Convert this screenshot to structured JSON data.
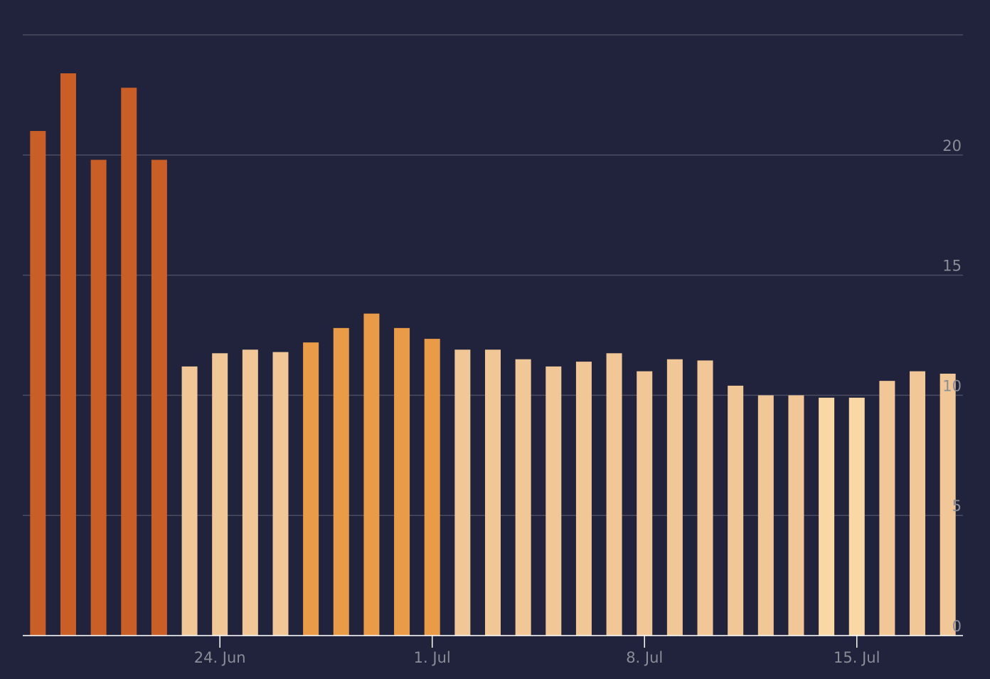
{
  "chart_data": {
    "type": "bar",
    "categories": [
      null,
      null,
      null,
      null,
      null,
      null,
      "24. Jun",
      null,
      null,
      null,
      null,
      null,
      null,
      "1. Jul",
      null,
      null,
      null,
      null,
      null,
      null,
      "8. Jul",
      null,
      null,
      null,
      null,
      null,
      null,
      "15. Jul",
      null,
      null,
      null
    ],
    "values": [
      21.0,
      23.4,
      19.8,
      22.8,
      19.8,
      11.2,
      11.75,
      11.9,
      11.8,
      12.2,
      12.8,
      13.4,
      12.8,
      12.35,
      11.9,
      11.9,
      11.5,
      11.2,
      11.4,
      11.75,
      11.0,
      11.5,
      11.45,
      10.4,
      10.0,
      10.0,
      9.9,
      9.9,
      10.6,
      11.0,
      10.9
    ],
    "colors": [
      "#c95e27",
      "#c95e27",
      "#c95e27",
      "#c95e27",
      "#c95e27",
      "#f2c797",
      "#f2c797",
      "#f2c797",
      "#f2c797",
      "#e99b48",
      "#e99b48",
      "#e99b48",
      "#e99b48",
      "#e99b48",
      "#f2c797",
      "#f2c797",
      "#f2c797",
      "#f2c797",
      "#f2c797",
      "#f2c797",
      "#f2c797",
      "#f2c797",
      "#f2c797",
      "#f2c797",
      "#f2c797",
      "#f2c797",
      "#f9d8a6",
      "#f9d8a6",
      "#f2c797",
      "#f2c797",
      "#f2c797"
    ],
    "ylim": [
      0,
      25
    ],
    "yticks": [
      0,
      5,
      10,
      15,
      20
    ],
    "grid": true
  }
}
